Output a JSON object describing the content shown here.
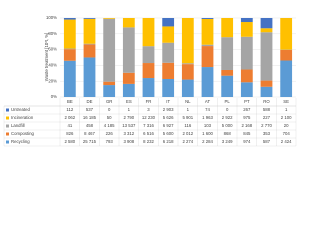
{
  "chart_data": {
    "type": "stacked-percent-bar",
    "y_label": "Waste treatment [10³t, %]",
    "categories": [
      "BE",
      "DE",
      "GR",
      "ES",
      "FR",
      "IT",
      "NL",
      "AT",
      "PL",
      "PT",
      "RO",
      "SE"
    ],
    "ylim": [
      0,
      100
    ],
    "yticks": [
      {
        "value": 0,
        "label": "0%"
      },
      {
        "value": 20,
        "label": "20%"
      },
      {
        "value": 40,
        "label": "40%"
      },
      {
        "value": 60,
        "label": "60%"
      },
      {
        "value": 80,
        "label": "80%"
      },
      {
        "value": 100,
        "label": "100%"
      }
    ],
    "grid": true,
    "series": [
      {
        "name": "Untreated",
        "color": "#4472c4",
        "values": [
          112,
          537,
          0,
          1,
          3,
          2903,
          1,
          74,
          0,
          267,
          588,
          1
        ],
        "value_labels": [
          "112",
          "537",
          "0",
          "1",
          "3",
          "2 903",
          "1",
          "74",
          "0",
          "267",
          "588",
          "1"
        ]
      },
      {
        "name": "Incineration",
        "color": "#ffc000",
        "values": [
          2062,
          16185,
          50,
          2790,
          12230,
          5626,
          5901,
          1963,
          2922,
          975,
          227,
          2100
        ],
        "value_labels": [
          "2 062",
          "16 185",
          "50",
          "2 790",
          "12 230",
          "5 626",
          "5 901",
          "1 963",
          "2 922",
          "975",
          "227",
          "2 100"
        ]
      },
      {
        "name": "Landfill",
        "color": "#a5a5a5",
        "values": [
          41,
          458,
          4185,
          13537,
          7316,
          6927,
          116,
          103,
          5000,
          2168,
          2770,
          20
        ],
        "value_labels": [
          "41",
          "458",
          "4 185",
          "13 537",
          "7 316",
          "6 927",
          "116",
          "103",
          "5 000",
          "2 168",
          "2 770",
          "20"
        ]
      },
      {
        "name": "Composting",
        "color": "#ed7d31",
        "values": [
          826,
          8467,
          226,
          3312,
          6516,
          5600,
          2012,
          1600,
          868,
          845,
          353,
          704
        ],
        "value_labels": [
          "826",
          "8 467",
          "226",
          "3 312",
          "6 516",
          "5 600",
          "2 012",
          "1 600",
          "868",
          "845",
          "353",
          "704"
        ]
      },
      {
        "name": "Recycling",
        "color": "#5b9bd5",
        "values": [
          2580,
          25715,
          793,
          3908,
          8232,
          6218,
          2274,
          2284,
          3249,
          974,
          587,
          2424
        ],
        "value_labels": [
          "2 580",
          "25 715",
          "793",
          "3 908",
          "8 232",
          "6 218",
          "2 274",
          "2 284",
          "3 249",
          "974",
          "587",
          "2 424"
        ]
      }
    ]
  }
}
